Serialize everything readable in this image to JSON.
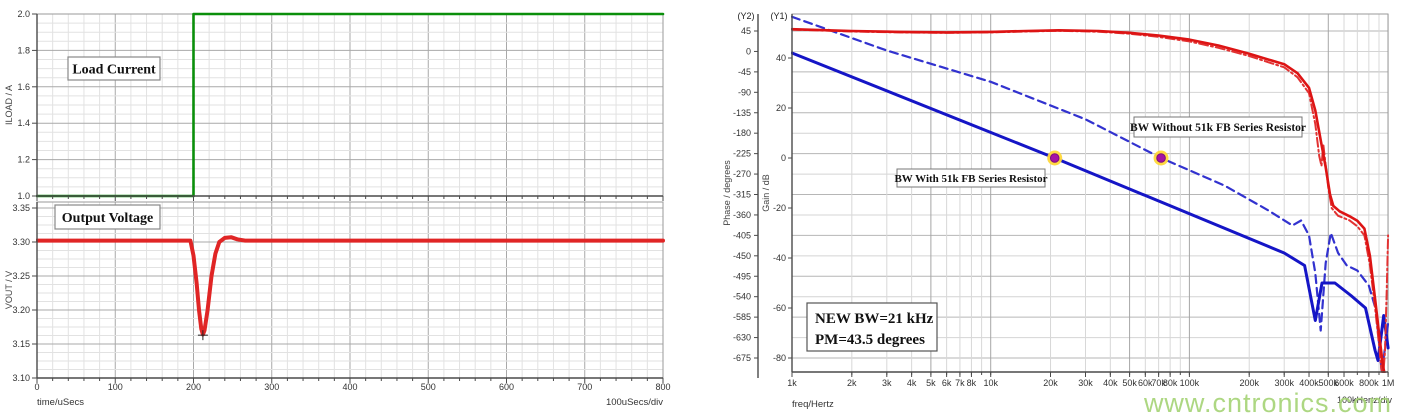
{
  "watermark": {
    "text": "www.cntronics.com",
    "color": "#a7d478"
  },
  "chart_data": [
    {
      "type": "line",
      "panel": "load-transient",
      "xlabel": "time/uSecs",
      "x_div_label": "100uSecs/div",
      "xlim": [
        0,
        800
      ],
      "xticks": [
        0,
        100,
        200,
        300,
        400,
        500,
        600,
        700,
        800
      ],
      "grid": "on",
      "subplots": [
        {
          "label": "Load Current",
          "ylabel": "ILOAD / A",
          "ylim": [
            1.0,
            2.0
          ],
          "ytick_labels": [
            "2.0",
            "1.8",
            "1.6",
            "1.4",
            "1.2",
            "1.0"
          ],
          "yticks": [
            2.0,
            1.8,
            1.6,
            1.4,
            1.2,
            1.0
          ],
          "series": [
            {
              "name": "ILOAD",
              "color": "#0b8f0b",
              "width": 2.6,
              "style": "solid",
              "points": [
                [
                  0,
                  1.0
                ],
                [
                  200,
                  1.0
                ],
                [
                  200,
                  2.0
                ],
                [
                  800,
                  2.0
                ]
              ]
            }
          ]
        },
        {
          "label": "Output Voltage",
          "ylabel": "VOUT / V",
          "ylim": [
            3.1,
            3.35
          ],
          "ytick_labels": [
            "3.35",
            "3.30",
            "3.25",
            "3.20",
            "3.15",
            "3.10"
          ],
          "yticks": [
            3.35,
            3.3,
            3.25,
            3.2,
            3.15,
            3.1
          ],
          "series": [
            {
              "name": "VOUT",
              "color": "#e02525",
              "width": 4,
              "style": "solid",
              "points": [
                [
                  0,
                  3.302
                ],
                [
                  196,
                  3.302
                ],
                [
                  200,
                  3.28
                ],
                [
                  204,
                  3.24
                ],
                [
                  207,
                  3.2
                ],
                [
                  210,
                  3.172
                ],
                [
                  212,
                  3.164
                ],
                [
                  214,
                  3.17
                ],
                [
                  218,
                  3.2
                ],
                [
                  223,
                  3.25
                ],
                [
                  228,
                  3.283
                ],
                [
                  233,
                  3.3
                ],
                [
                  240,
                  3.306
                ],
                [
                  248,
                  3.307
                ],
                [
                  256,
                  3.304
                ],
                [
                  266,
                  3.302
                ],
                [
                  800,
                  3.302
                ]
              ]
            }
          ],
          "cursor": {
            "x": 212,
            "y": 3.163
          }
        }
      ]
    },
    {
      "type": "line",
      "panel": "bode-plot",
      "xlabel": "freq/Hertz",
      "x_div_label": "100kHertz/div",
      "xscale": "log",
      "xlim": [
        1000,
        1000000
      ],
      "xtick_labels": [
        [
          "1k",
          1000
        ],
        [
          "2k",
          2000
        ],
        [
          "3k",
          3000
        ],
        [
          "4k",
          4000
        ],
        [
          "5k",
          5000
        ],
        [
          "6k",
          6000
        ],
        [
          "7k",
          7000
        ],
        [
          "8k",
          8000
        ],
        [
          "10k",
          10000
        ],
        [
          "20k",
          20000
        ],
        [
          "30k",
          30000
        ],
        [
          "40k",
          40000
        ],
        [
          "50k",
          50000
        ],
        [
          "60k",
          60000
        ],
        [
          "70k",
          70000
        ],
        [
          "80k",
          80000
        ],
        [
          "100k",
          100000
        ],
        [
          "200k",
          200000
        ],
        [
          "300k",
          300000
        ],
        [
          "400k",
          400000
        ],
        [
          "500k",
          500000
        ],
        [
          "600k",
          600000
        ],
        [
          "800k",
          800000
        ],
        [
          "1M",
          1000000
        ]
      ],
      "axes": [
        {
          "id": "(Y2)",
          "label": "Phase / degrees",
          "tick_top": 45,
          "tick_bottom": -675,
          "tick_step": 45
        },
        {
          "id": "(Y1)",
          "label": "Gain / dB",
          "yticks": [
            40,
            20,
            0,
            -20,
            -40,
            -60,
            -80
          ]
        }
      ],
      "series": [
        {
          "name": "Gain without 51k FB series resistor",
          "axis": "Y1",
          "color": "#3232cf",
          "width": 2.2,
          "style": "dashed",
          "points": [
            [
              1000,
              56.5
            ],
            [
              3000,
              43
            ],
            [
              10000,
              30.5
            ],
            [
              30000,
              15.5
            ],
            [
              72000,
              0
            ],
            [
              150000,
              -11
            ],
            [
              250000,
              -21
            ],
            [
              330000,
              -27
            ],
            [
              365000,
              -25
            ],
            [
              400000,
              -31
            ],
            [
              430000,
              -46
            ],
            [
              458000,
              -69
            ],
            [
              485000,
              -42
            ],
            [
              515000,
              -30
            ],
            [
              560000,
              -38
            ],
            [
              620000,
              -43
            ],
            [
              700000,
              -45
            ],
            [
              800000,
              -51
            ],
            [
              870000,
              -61
            ],
            [
              930000,
              -86
            ],
            [
              1000000,
              -66
            ]
          ]
        },
        {
          "name": "Gain with 51k FB series resistor",
          "axis": "Y1",
          "color": "#1515c6",
          "width": 3,
          "style": "solid",
          "points": [
            [
              1000,
              42
            ],
            [
              21000,
              0
            ],
            [
              300000,
              -38
            ],
            [
              380000,
              -43
            ],
            [
              430000,
              -65
            ],
            [
              465000,
              -50
            ],
            [
              540000,
              -50
            ],
            [
              650000,
              -55
            ],
            [
              770000,
              -60
            ],
            [
              860000,
              -77
            ],
            [
              890000,
              -81
            ],
            [
              950000,
              -63
            ],
            [
              1000000,
              -76
            ]
          ]
        },
        {
          "name": "Phase without 51k FB series resistor",
          "axis": "Y2",
          "color": "#e23232",
          "width": 2,
          "style": "dashdot",
          "points": [
            [
              1000,
              48
            ],
            [
              2000,
              44
            ],
            [
              3500,
              42
            ],
            [
              6000,
              41
            ],
            [
              10000,
              42
            ],
            [
              15000,
              44
            ],
            [
              22000,
              45.5
            ],
            [
              35000,
              43.5
            ],
            [
              50000,
              39
            ],
            [
              70000,
              32
            ],
            [
              100000,
              22
            ],
            [
              140000,
              8
            ],
            [
              200000,
              -10
            ],
            [
              250000,
              -24
            ],
            [
              300000,
              -35
            ],
            [
              350000,
              -57
            ],
            [
              400000,
              -92
            ],
            [
              430000,
              -160
            ],
            [
              450000,
              -230
            ],
            [
              462000,
              -252
            ],
            [
              472000,
              -205
            ],
            [
              482000,
              -240
            ],
            [
              500000,
              -300
            ],
            [
              520000,
              -345
            ],
            [
              560000,
              -362
            ],
            [
              640000,
              -372
            ],
            [
              700000,
              -385
            ],
            [
              760000,
              -405
            ],
            [
              810000,
              -470
            ],
            [
              860000,
              -565
            ],
            [
              900000,
              -645
            ],
            [
              925000,
              -700
            ],
            [
              945000,
              -712
            ],
            [
              965000,
              -660
            ],
            [
              985000,
              -520
            ],
            [
              1000000,
              -405
            ]
          ]
        },
        {
          "name": "Phase with 51k FB series resistor",
          "axis": "Y2",
          "color": "#dd1414",
          "width": 2.6,
          "style": "solid",
          "points": [
            [
              1000,
              49
            ],
            [
              2000,
              45
            ],
            [
              3500,
              43
            ],
            [
              6000,
              42
            ],
            [
              10000,
              43
            ],
            [
              15000,
              45
            ],
            [
              22000,
              46.5
            ],
            [
              35000,
              45
            ],
            [
              50000,
              41
            ],
            [
              70000,
              35
            ],
            [
              100000,
              26
            ],
            [
              140000,
              13
            ],
            [
              200000,
              -5
            ],
            [
              250000,
              -18
            ],
            [
              300000,
              -28
            ],
            [
              350000,
              -48
            ],
            [
              400000,
              -80
            ],
            [
              430000,
              -130
            ],
            [
              460000,
              -200
            ],
            [
              485000,
              -255
            ],
            [
              510000,
              -315
            ],
            [
              530000,
              -340
            ],
            [
              570000,
              -352
            ],
            [
              640000,
              -363
            ],
            [
              700000,
              -373
            ],
            [
              760000,
              -390
            ],
            [
              810000,
              -450
            ],
            [
              860000,
              -545
            ],
            [
              900000,
              -620
            ],
            [
              940000,
              -690
            ],
            [
              960000,
              -710
            ]
          ]
        }
      ],
      "markers": [
        {
          "freq": 21000,
          "gain": 0,
          "meaning": "BW with 51k FB series resistor"
        },
        {
          "freq": 72000,
          "gain": 0,
          "meaning": "BW without 51k FB series resistor"
        }
      ],
      "annotations": [
        {
          "id": "bw-with",
          "text": "BW With 51k FB Series Resistor"
        },
        {
          "id": "bw-without",
          "text": "BW Without 51k FB Series Resistor"
        },
        {
          "id": "new-bw",
          "lines": [
            "NEW BW=21 kHz",
            "PM=43.5 degrees"
          ]
        }
      ]
    }
  ]
}
